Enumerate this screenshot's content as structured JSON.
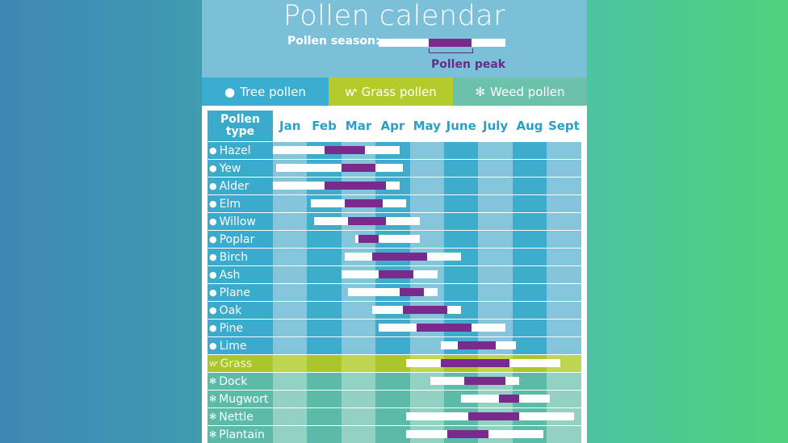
{
  "title": "Pollen calendar",
  "legend": {
    "season_label": "Pollen season:",
    "peak_label": "Pollen peak"
  },
  "tabs": [
    {
      "label": "Tree pollen",
      "icon": "tree-icon",
      "color": "#3aaed0"
    },
    {
      "label": "Grass pollen",
      "icon": "grass-icon",
      "color": "#b3cc2c"
    },
    {
      "label": "Weed pollen",
      "icon": "weed-icon",
      "color": "#6cc1aa"
    }
  ],
  "colors": {
    "season": "#ffffff",
    "peak": "#7a2a8c"
  },
  "chart_data": {
    "type": "gantt",
    "title": "Pollen calendar",
    "row_header": "Pollen type",
    "categories": [
      "Jan",
      "Feb",
      "Mar",
      "Apr",
      "May",
      "June",
      "July",
      "Aug",
      "Sept"
    ],
    "value_units": "months elapsed from start of Jan",
    "xlim": [
      0,
      9
    ],
    "rows": [
      {
        "name": "Hazel",
        "group": "tree",
        "season": [
          0.0,
          3.7
        ],
        "peak": [
          1.5,
          2.7
        ]
      },
      {
        "name": "Yew",
        "group": "tree",
        "season": [
          0.1,
          3.8
        ],
        "peak": [
          2.0,
          3.0
        ]
      },
      {
        "name": "Alder",
        "group": "tree",
        "season": [
          0.0,
          3.7
        ],
        "peak": [
          1.5,
          3.3
        ]
      },
      {
        "name": "Elm",
        "group": "tree",
        "season": [
          1.1,
          3.9
        ],
        "peak": [
          2.1,
          3.2
        ]
      },
      {
        "name": "Willow",
        "group": "tree",
        "season": [
          1.2,
          4.3
        ],
        "peak": [
          2.2,
          3.3
        ]
      },
      {
        "name": "Poplar",
        "group": "tree",
        "season": [
          2.4,
          4.3
        ],
        "peak": [
          2.5,
          3.1
        ]
      },
      {
        "name": "Birch",
        "group": "tree",
        "season": [
          2.1,
          5.5
        ],
        "peak": [
          2.9,
          4.5
        ]
      },
      {
        "name": "Ash",
        "group": "tree",
        "season": [
          2.0,
          4.8
        ],
        "peak": [
          3.1,
          4.1
        ]
      },
      {
        "name": "Plane",
        "group": "tree",
        "season": [
          2.2,
          4.8
        ],
        "peak": [
          3.7,
          4.4
        ]
      },
      {
        "name": "Oak",
        "group": "tree",
        "season": [
          2.9,
          5.5
        ],
        "peak": [
          3.8,
          5.1
        ]
      },
      {
        "name": "Pine",
        "group": "tree",
        "season": [
          3.1,
          6.8
        ],
        "peak": [
          4.2,
          5.8
        ]
      },
      {
        "name": "Lime",
        "group": "tree",
        "season": [
          4.9,
          7.1
        ],
        "peak": [
          5.4,
          6.5
        ]
      },
      {
        "name": "Grass",
        "group": "grass",
        "season": [
          3.9,
          8.4
        ],
        "peak": [
          4.9,
          6.9
        ]
      },
      {
        "name": "Dock",
        "group": "weed",
        "season": [
          4.6,
          7.2
        ],
        "peak": [
          5.6,
          6.8
        ]
      },
      {
        "name": "Mugwort",
        "group": "weed",
        "season": [
          5.5,
          8.1
        ],
        "peak": [
          6.6,
          7.2
        ]
      },
      {
        "name": "Nettle",
        "group": "weed",
        "season": [
          3.9,
          8.8
        ],
        "peak": [
          5.7,
          7.2
        ]
      },
      {
        "name": "Plantain",
        "group": "weed",
        "season": [
          3.9,
          7.9
        ],
        "peak": [
          5.1,
          6.3
        ]
      }
    ]
  }
}
